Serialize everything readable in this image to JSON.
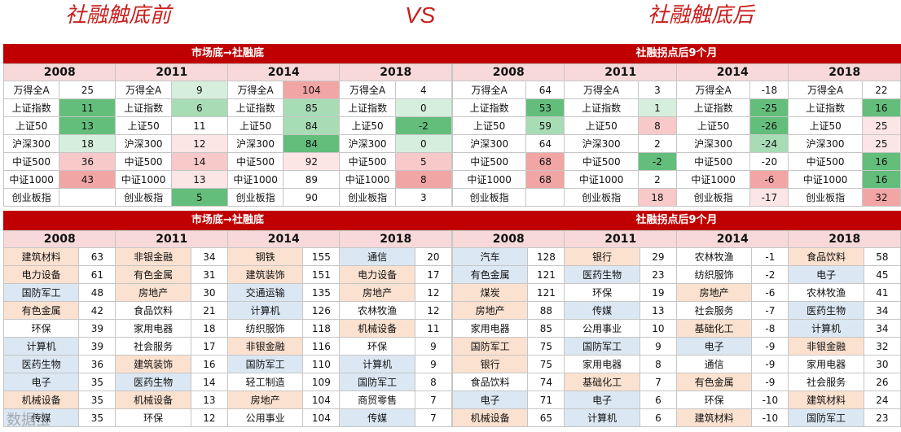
{
  "header": {
    "before": "社融触底前",
    "vs": "VS",
    "after": "社融触底后"
  },
  "years": [
    "2008",
    "2011",
    "2014",
    "2018"
  ],
  "top_left": {
    "title": "市场底→社融底",
    "rows": [
      [
        [
          "万得全A",
          "25",
          ""
        ],
        [
          "万得全A",
          "9",
          "g1"
        ],
        [
          "万得全A",
          "104",
          "r3"
        ],
        [
          "万得全A",
          "4",
          ""
        ]
      ],
      [
        [
          "上证指数",
          "11",
          "g3"
        ],
        [
          "上证指数",
          "6",
          "g2"
        ],
        [
          "上证指数",
          "85",
          "g2"
        ],
        [
          "上证指数",
          "0",
          "g1"
        ]
      ],
      [
        [
          "上证50",
          "13",
          "g3"
        ],
        [
          "上证50",
          "11",
          ""
        ],
        [
          "上证50",
          "84",
          "g2"
        ],
        [
          "上证50",
          "-2",
          "g3"
        ]
      ],
      [
        [
          "沪深300",
          "18",
          "g1"
        ],
        [
          "沪深300",
          "12",
          "r1"
        ],
        [
          "沪深300",
          "84",
          "g3"
        ],
        [
          "沪深300",
          "0",
          "g1"
        ]
      ],
      [
        [
          "中证500",
          "36",
          "r2"
        ],
        [
          "中证500",
          "14",
          "r2"
        ],
        [
          "中证500",
          "92",
          "r1"
        ],
        [
          "中证500",
          "5",
          "r2"
        ]
      ],
      [
        [
          "中证1000",
          "43",
          "r3"
        ],
        [
          "中证1000",
          "13",
          "r1"
        ],
        [
          "中证1000",
          "89",
          ""
        ],
        [
          "中证1000",
          "8",
          "r3"
        ]
      ],
      [
        [
          "创业板指",
          "",
          ""
        ],
        [
          "创业板指",
          "5",
          "g3"
        ],
        [
          "创业板指",
          "90",
          ""
        ],
        [
          "创业板指",
          "3",
          ""
        ]
      ]
    ]
  },
  "top_right": {
    "title": "社融拐点后9个月",
    "rows": [
      [
        [
          "万得全A",
          "64",
          ""
        ],
        [
          "万得全A",
          "3",
          ""
        ],
        [
          "万得全A",
          "-18",
          ""
        ],
        [
          "万得全A",
          "22",
          ""
        ]
      ],
      [
        [
          "上证指数",
          "53",
          "g3"
        ],
        [
          "上证指数",
          "1",
          "g1"
        ],
        [
          "上证指数",
          "-25",
          "g3"
        ],
        [
          "上证指数",
          "16",
          "g3"
        ]
      ],
      [
        [
          "上证50",
          "59",
          "g2"
        ],
        [
          "上证50",
          "8",
          "r2"
        ],
        [
          "上证50",
          "-26",
          "g3"
        ],
        [
          "上证50",
          "25",
          "r1"
        ]
      ],
      [
        [
          "沪深300",
          "64",
          ""
        ],
        [
          "沪深300",
          "2",
          ""
        ],
        [
          "沪深300",
          "-24",
          "g2"
        ],
        [
          "沪深300",
          "25",
          "r1"
        ]
      ],
      [
        [
          "中证500",
          "68",
          "r3"
        ],
        [
          "中证500",
          "-2",
          "g3"
        ],
        [
          "中证500",
          "-20",
          ""
        ],
        [
          "中证500",
          "16",
          "g3"
        ]
      ],
      [
        [
          "中证1000",
          "68",
          "r3"
        ],
        [
          "中证1000",
          "2",
          ""
        ],
        [
          "中证1000",
          "-6",
          "r3"
        ],
        [
          "中证1000",
          "16",
          "g3"
        ]
      ],
      [
        [
          "创业板指",
          "",
          ""
        ],
        [
          "创业板指",
          "18",
          "r2"
        ],
        [
          "创业板指",
          "-17",
          "r1"
        ],
        [
          "创业板指",
          "32",
          "r3"
        ]
      ]
    ]
  },
  "bottom_left": {
    "title": "市场底→社融底",
    "rows": [
      [
        [
          "建筑材料",
          "63",
          "o"
        ],
        [
          "非银金融",
          "34",
          "o"
        ],
        [
          "钢铁",
          "155",
          "o"
        ],
        [
          "通信",
          "20",
          "b"
        ]
      ],
      [
        [
          "电力设备",
          "61",
          "o"
        ],
        [
          "有色金属",
          "31",
          "o"
        ],
        [
          "建筑装饰",
          "151",
          "o"
        ],
        [
          "电力设备",
          "17",
          "o"
        ]
      ],
      [
        [
          "国防军工",
          "48",
          "b"
        ],
        [
          "房地产",
          "30",
          "o"
        ],
        [
          "交通运输",
          "135",
          "b"
        ],
        [
          "房地产",
          "12",
          "o"
        ]
      ],
      [
        [
          "有色金属",
          "42",
          "o"
        ],
        [
          "食品饮料",
          "21",
          ""
        ],
        [
          "计算机",
          "126",
          "b"
        ],
        [
          "农林牧渔",
          "12",
          ""
        ]
      ],
      [
        [
          "环保",
          "39",
          ""
        ],
        [
          "家用电器",
          "18",
          ""
        ],
        [
          "纺织服饰",
          "118",
          ""
        ],
        [
          "机械设备",
          "11",
          "o"
        ]
      ],
      [
        [
          "计算机",
          "39",
          "b"
        ],
        [
          "社会服务",
          "17",
          ""
        ],
        [
          "非银金融",
          "116",
          "o"
        ],
        [
          "环保",
          "9",
          ""
        ]
      ],
      [
        [
          "医药生物",
          "36",
          "b"
        ],
        [
          "建筑装饰",
          "16",
          "o"
        ],
        [
          "国防军工",
          "110",
          "b"
        ],
        [
          "计算机",
          "9",
          "b"
        ]
      ],
      [
        [
          "电子",
          "35",
          "b"
        ],
        [
          "医药生物",
          "14",
          "b"
        ],
        [
          "轻工制造",
          "109",
          ""
        ],
        [
          "国防军工",
          "8",
          "b"
        ]
      ],
      [
        [
          "机械设备",
          "35",
          "o"
        ],
        [
          "机械设备",
          "13",
          "o"
        ],
        [
          "房地产",
          "104",
          "o"
        ],
        [
          "商贸零售",
          "7",
          ""
        ]
      ],
      [
        [
          "传媒",
          "35",
          "b"
        ],
        [
          "环保",
          "12",
          ""
        ],
        [
          "公用事业",
          "104",
          ""
        ],
        [
          "传媒",
          "7",
          "b"
        ]
      ]
    ]
  },
  "bottom_right": {
    "title": "社融拐点后9个月",
    "rows": [
      [
        [
          "汽车",
          "128",
          "b"
        ],
        [
          "银行",
          "29",
          "o"
        ],
        [
          "农林牧渔",
          "-1",
          ""
        ],
        [
          "食品饮料",
          "58",
          "o"
        ]
      ],
      [
        [
          "有色金属",
          "121",
          "b"
        ],
        [
          "医药生物",
          "23",
          "b"
        ],
        [
          "纺织服饰",
          "-2",
          ""
        ],
        [
          "电子",
          "45",
          "b"
        ]
      ],
      [
        [
          "煤炭",
          "121",
          "o"
        ],
        [
          "环保",
          "19",
          ""
        ],
        [
          "房地产",
          "-6",
          "o"
        ],
        [
          "农林牧渔",
          "41",
          ""
        ]
      ],
      [
        [
          "房地产",
          "88",
          "o"
        ],
        [
          "传媒",
          "13",
          "b"
        ],
        [
          "社会服务",
          "-7",
          ""
        ],
        [
          "医药生物",
          "34",
          "b"
        ]
      ],
      [
        [
          "家用电器",
          "85",
          ""
        ],
        [
          "公用事业",
          "10",
          ""
        ],
        [
          "基础化工",
          "-8",
          "o"
        ],
        [
          "计算机",
          "34",
          "b"
        ]
      ],
      [
        [
          "国防军工",
          "75",
          "o"
        ],
        [
          "国防军工",
          "9",
          "b"
        ],
        [
          "电子",
          "-9",
          "b"
        ],
        [
          "非银金融",
          "32",
          "o"
        ]
      ],
      [
        [
          "银行",
          "75",
          "o"
        ],
        [
          "家用电器",
          "8",
          ""
        ],
        [
          "通信",
          "-9",
          ""
        ],
        [
          "家用电器",
          "30",
          ""
        ]
      ],
      [
        [
          "食品饮料",
          "74",
          ""
        ],
        [
          "基础化工",
          "7",
          "o"
        ],
        [
          "有色金属",
          "-9",
          "o"
        ],
        [
          "社会服务",
          "26",
          ""
        ]
      ],
      [
        [
          "电子",
          "71",
          "b"
        ],
        [
          "电子",
          "6",
          "b"
        ],
        [
          "环保",
          "-10",
          ""
        ],
        [
          "建筑材料",
          "24",
          "o"
        ]
      ],
      [
        [
          "机械设备",
          "65",
          "o"
        ],
        [
          "计算机",
          "6",
          "b"
        ],
        [
          "建筑材料",
          "-10",
          "o"
        ],
        [
          "国防军工",
          "23",
          "b"
        ]
      ]
    ]
  },
  "watermark": "数据宝"
}
